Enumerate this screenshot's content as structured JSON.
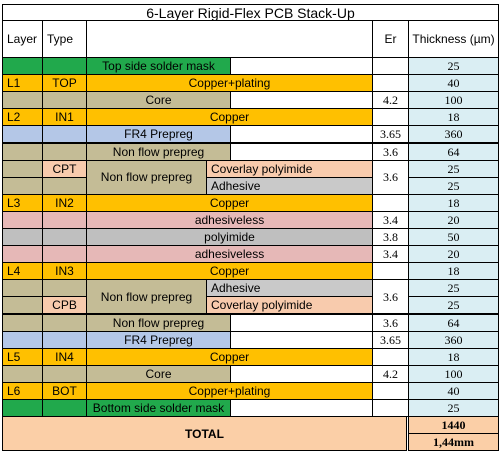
{
  "title": "6-Layer Rigid-Flex PCB Stack-Up",
  "headers": {
    "layer": "Layer",
    "type": "Type",
    "er": "Er",
    "thickness": "Thickness (µm)"
  },
  "rows": [
    {
      "material": "Top side solder mask",
      "thickness": "25"
    },
    {
      "layer": "L1",
      "type": "TOP",
      "material": "Copper+plating",
      "thickness": "40"
    },
    {
      "material": "Core",
      "er": "4.2",
      "thickness": "100"
    },
    {
      "layer": "L2",
      "type": "IN1",
      "material": "Copper",
      "thickness": "18"
    },
    {
      "material": "FR4 Prepreg",
      "er": "3.65",
      "thickness": "360"
    },
    {
      "material": "Non flow prepreg",
      "er": "3.6",
      "thickness": "64"
    },
    {
      "type": "CPT",
      "material": "Non flow prepreg",
      "sub_material": "Coverlay polyimide",
      "er": "3.6",
      "thickness": "25"
    },
    {
      "sub_material": "Adhesive",
      "thickness": "25"
    },
    {
      "layer": "L3",
      "type": "IN2",
      "material": "Copper",
      "thickness": "18"
    },
    {
      "material": "adhesiveless",
      "er": "3.4",
      "thickness": "20"
    },
    {
      "material": "polyimide",
      "er": "3.8",
      "thickness": "50"
    },
    {
      "material": "adhesiveless",
      "er": "3.4",
      "thickness": "20"
    },
    {
      "layer": "L4",
      "type": "IN3",
      "material": "Copper",
      "thickness": "18"
    },
    {
      "material": "Non flow prepreg",
      "sub_material": "Adhesive",
      "er": "3.6",
      "thickness": "25"
    },
    {
      "type": "CPB",
      "sub_material": "Coverlay polyimide",
      "thickness": "25"
    },
    {
      "material": "Non flow prepreg",
      "er": "3.6",
      "thickness": "64"
    },
    {
      "material": "FR4 Prepreg",
      "er": "3.65",
      "thickness": "360"
    },
    {
      "layer": "L5",
      "type": "IN4",
      "material": "Copper",
      "thickness": "18"
    },
    {
      "material": "Core",
      "er": "4.2",
      "thickness": "100"
    },
    {
      "layer": "L6",
      "type": "BOT",
      "material": "Copper+plating",
      "thickness": "40"
    },
    {
      "material": "Bottom side solder mask",
      "thickness": "25"
    }
  ],
  "total": {
    "label": "TOTAL",
    "value_um": "1440",
    "value_mm": "1,44mm"
  },
  "colors": {
    "solder_mask": "#21a94c",
    "copper": "#ffc000",
    "core": "#c4bc96",
    "fr4": "#b4c7e7",
    "non_flow": "#c4bc96",
    "coverlay": "#f8cbad",
    "adhesive": "#c9c9c9",
    "adhesiveless": "#e6b8b7",
    "polyimide": "#bfbfbf",
    "thickness_col": "#daeef3",
    "total": "#fbcfa7"
  }
}
